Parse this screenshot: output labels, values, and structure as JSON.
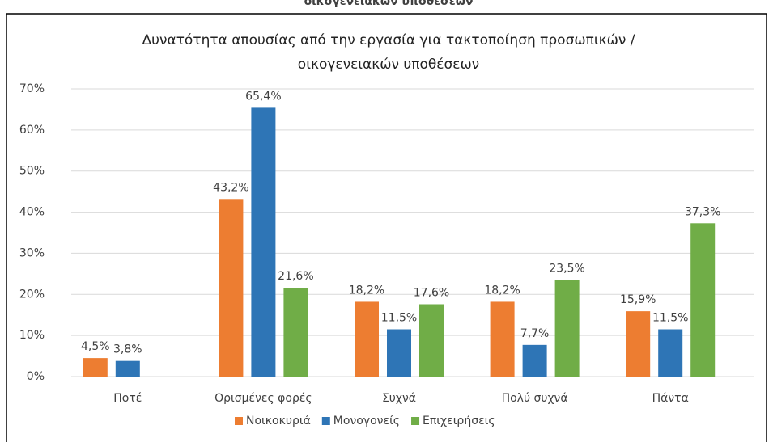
{
  "header_fragment": "οικογενειακών υποθέσεων",
  "chart_data": {
    "type": "bar",
    "title": [
      "Δυνατότητα απουσίας από την εργασία για τακτοποίηση προσωπικών /",
      "οικογενειακών υποθέσεων"
    ],
    "categories": [
      "Ποτέ",
      "Ορισμένες φορές",
      "Συχνά",
      "Πολύ συχνά",
      "Πάντα"
    ],
    "series": [
      {
        "name": "Νοικοκυριά",
        "color": "#ed7d31",
        "values": [
          4.5,
          43.2,
          18.2,
          18.2,
          15.9
        ],
        "value_labels": [
          "4,5%",
          "43,2%",
          "18,2%",
          "18,2%",
          "15,9%"
        ]
      },
      {
        "name": "Μονογονείς",
        "color": "#2e75b6",
        "values": [
          3.8,
          65.4,
          11.5,
          7.7,
          11.5
        ],
        "value_labels": [
          "3,8%",
          "65,4%",
          "11,5%",
          "7,7%",
          "11,5%"
        ]
      },
      {
        "name": "Επιχειρήσεις",
        "color": "#70ad47",
        "values": [
          null,
          21.6,
          17.6,
          23.5,
          37.3
        ],
        "value_labels": [
          null,
          "21,6%",
          "17,6%",
          "23,5%",
          "37,3%"
        ]
      }
    ],
    "ylim": [
      0,
      70
    ],
    "yticks": [
      {
        "value": 0,
        "label": "0%"
      },
      {
        "value": 10,
        "label": "10%"
      },
      {
        "value": 20,
        "label": "20%"
      },
      {
        "value": 30,
        "label": "30%"
      },
      {
        "value": 40,
        "label": "40%"
      },
      {
        "value": 50,
        "label": "50%"
      },
      {
        "value": 60,
        "label": "60%"
      },
      {
        "value": 70,
        "label": "70%"
      }
    ],
    "grid": true,
    "legend": "bottom"
  }
}
